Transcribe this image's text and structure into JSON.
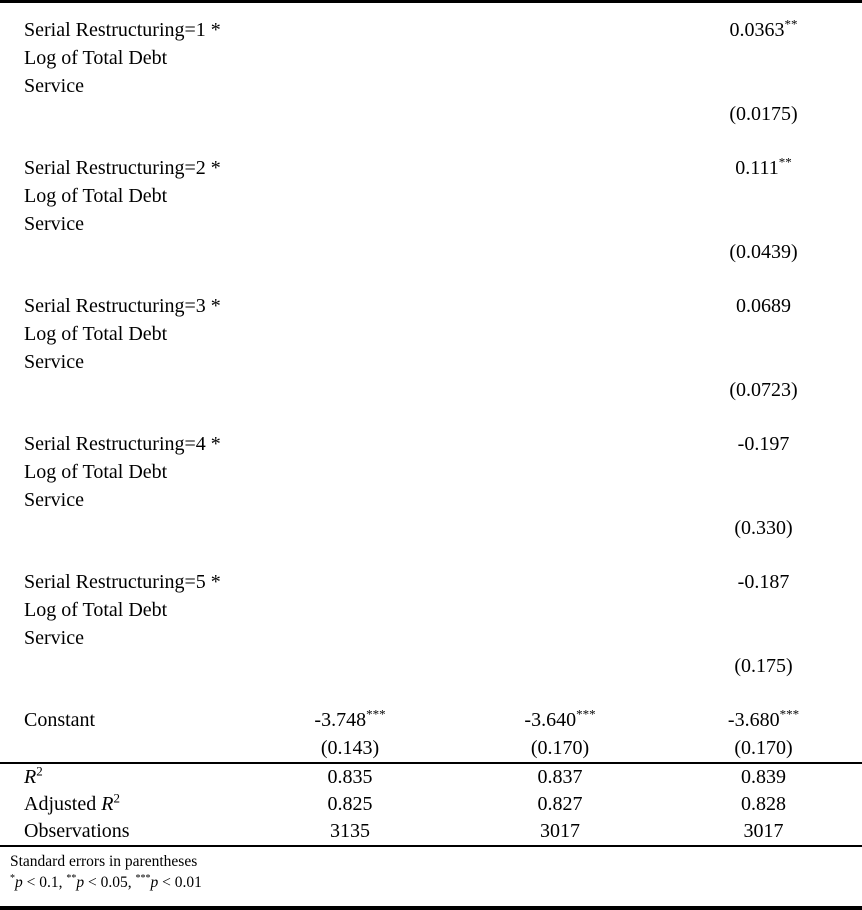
{
  "colors": {
    "text": "#000000",
    "background": "#ffffff",
    "rule": "#000000"
  },
  "table": {
    "coef_blocks": [
      {
        "label_lines": [
          "Serial Restructuring=1 *",
          "Log of Total Debt",
          "Service"
        ],
        "coef": "0.0363",
        "stars": "**",
        "se": "(0.0175)"
      },
      {
        "label_lines": [
          "Serial Restructuring=2 *",
          "Log of Total Debt",
          "Service"
        ],
        "coef": "0.111",
        "stars": "**",
        "se": "(0.0439)"
      },
      {
        "label_lines": [
          "Serial Restructuring=3 *",
          "Log of Total Debt",
          "Service"
        ],
        "coef": "0.0689",
        "stars": "",
        "se": "(0.0723)"
      },
      {
        "label_lines": [
          "Serial Restructuring=4 *",
          "Log of Total Debt",
          "Service"
        ],
        "coef": "-0.197",
        "stars": "",
        "se": "(0.330)"
      },
      {
        "label_lines": [
          "Serial Restructuring=5 *",
          "Log of Total Debt",
          "Service"
        ],
        "coef": "-0.187",
        "stars": "",
        "se": "(0.175)"
      }
    ],
    "constant_row": {
      "label": "Constant",
      "cells": [
        {
          "coef": "-3.748",
          "stars": "***",
          "se": "(0.143)"
        },
        {
          "coef": "-3.640",
          "stars": "***",
          "se": "(0.170)"
        },
        {
          "coef": "-3.680",
          "stars": "***",
          "se": "(0.170)"
        }
      ]
    },
    "stats_rows": [
      {
        "prefix": "",
        "italic_var": "R",
        "sup": "2",
        "values": [
          "0.835",
          "0.837",
          "0.839"
        ]
      },
      {
        "prefix": "Adjusted ",
        "italic_var": "R",
        "sup": "2",
        "values": [
          "0.825",
          "0.827",
          "0.828"
        ]
      },
      {
        "prefix": "Observations",
        "italic_var": "",
        "sup": "",
        "values": [
          "3135",
          "3017",
          "3017"
        ]
      }
    ],
    "footnotes": {
      "line1": "Standard errors in parentheses",
      "line2_parts": [
        {
          "stars": "*",
          "var": "p",
          "rest": " < 0.1, "
        },
        {
          "stars": "**",
          "var": "p",
          "rest": " < 0.05, "
        },
        {
          "stars": "***",
          "var": "p",
          "rest": " < 0.01"
        }
      ]
    }
  }
}
